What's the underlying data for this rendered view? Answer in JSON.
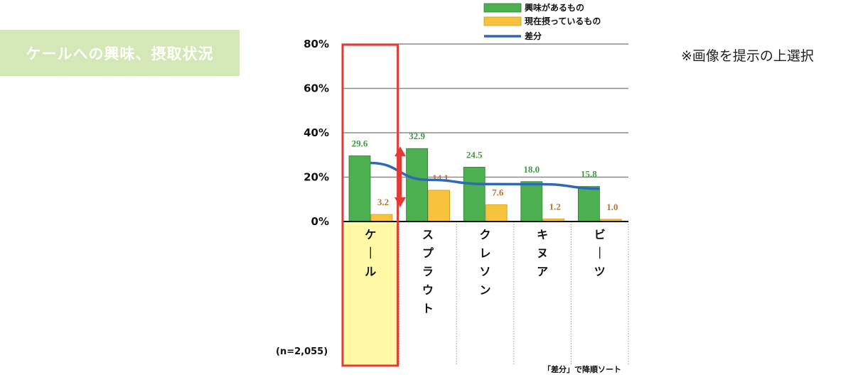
{
  "header": {
    "title": "ケールへの興味、摂取状況",
    "note": "※画像を提示の上選択"
  },
  "footer": {
    "sample": "(n=2,055)",
    "sort_note": "「差分」で降順ソート"
  },
  "colors": {
    "interest": "#4caf50",
    "current": "#f7c23c",
    "diff": "#2e69b8",
    "highlight": "#e53935",
    "highlight_fill": "#fff9a6",
    "interest_label": "#3f9b3f",
    "current_label": "#c0722b",
    "arrow": "#e53935"
  },
  "chart_data": {
    "type": "bar",
    "categories": [
      "ケール",
      "スプラウト",
      "クレソン",
      "キヌア",
      "ビーツ"
    ],
    "series": [
      {
        "name": "興味があるもの",
        "type": "bar",
        "values": [
          29.6,
          32.9,
          24.5,
          18.0,
          15.8
        ]
      },
      {
        "name": "現在摂っているもの",
        "type": "bar",
        "values": [
          3.2,
          14.1,
          7.6,
          1.2,
          1.0
        ]
      },
      {
        "name": "差分",
        "type": "line",
        "values": [
          26.4,
          18.8,
          16.9,
          16.8,
          14.8
        ]
      }
    ],
    "yticks": [
      "0%",
      "20%",
      "40%",
      "60%",
      "80%"
    ],
    "ylim": [
      0,
      80
    ],
    "grid": true,
    "legend_position": "top",
    "highlighted_category": "ケール"
  }
}
